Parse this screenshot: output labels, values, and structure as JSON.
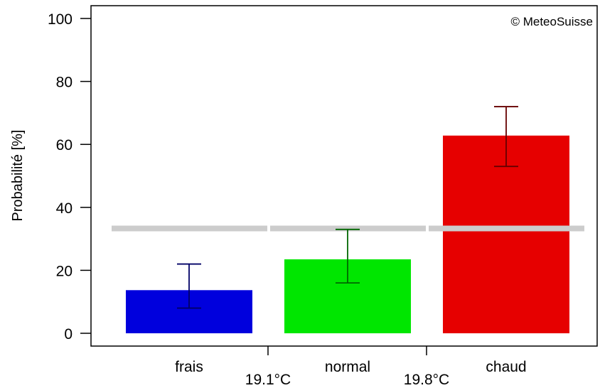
{
  "chart_data": {
    "type": "bar",
    "categories": [
      "frais",
      "normal",
      "chaud"
    ],
    "values": [
      13.7,
      23.5,
      62.8
    ],
    "error_low": [
      8,
      16,
      53
    ],
    "error_high": [
      22,
      33,
      72
    ],
    "climatology_reference": 33.3,
    "thresholds": [
      "19.1°C",
      "19.8°C"
    ],
    "colors": [
      "#0000dd",
      "#00e600",
      "#e60000"
    ],
    "error_colors": [
      "#000066",
      "#006600",
      "#660000"
    ],
    "reference_color": "#cccccc",
    "ylabel": "Probabilité [%]",
    "ylim": [
      0,
      100
    ],
    "yticks": [
      0,
      20,
      40,
      60,
      80,
      100
    ],
    "credit": "© MeteoSuisse",
    "grid": false,
    "legend": "none"
  }
}
